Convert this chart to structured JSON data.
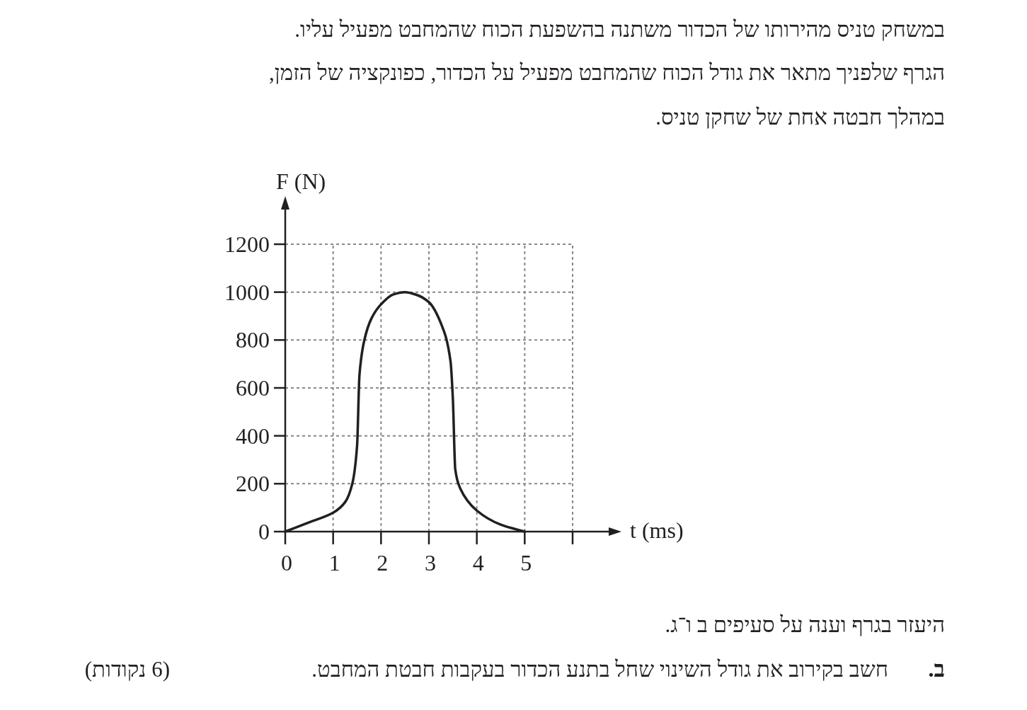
{
  "chart_data": {
    "type": "line",
    "xlabel": "t (ms)",
    "ylabel": "F (N)",
    "x": [
      0,
      0.5,
      1.0,
      1.25,
      1.4,
      1.5,
      1.55,
      1.65,
      1.8,
      2.0,
      2.25,
      2.5,
      2.75,
      3.0,
      3.25,
      3.45,
      3.5,
      3.55,
      3.65,
      4.0,
      4.5,
      5
    ],
    "series": [
      {
        "color": "#231f20",
        "values": [
          0,
          39,
          79,
          123,
          200,
          359,
          654,
          798,
          890,
          949,
          990,
          1000,
          988,
          958,
          870,
          713,
          555,
          260,
          182,
          88,
          29,
          0
        ]
      }
    ],
    "xlim": [
      0,
      6
    ],
    "xticks": [
      0,
      1,
      2,
      3,
      4,
      5,
      {
        "value": 6,
        "label": null
      }
    ],
    "ylim": [
      0,
      1200
    ],
    "yticks": [
      0,
      200,
      400,
      600,
      800,
      1000,
      1200
    ],
    "grid": true,
    "line_style": "solid",
    "marker": "none",
    "annotations": [
      "במשחק טניס מהירותו של הכדור משתנה בהשפעת הכוח שהמחבט מפעיל עליו.",
      "הגרף שלפניך מתאר את גודל הכוח שהמחבט מפעיל על הכדור, כפונקציה של הזמן,",
      "במהלך חבטה אחת של שחקן טניס.",
      "היעזר בגרף וענה על סעיפים ב ו־ג.",
      "ב.",
      "חשב בקירוב את גודל השינוי שחל בתנע הכדור בעקבות חבטת המחבט.",
      "(6 נקודות)"
    ]
  }
}
